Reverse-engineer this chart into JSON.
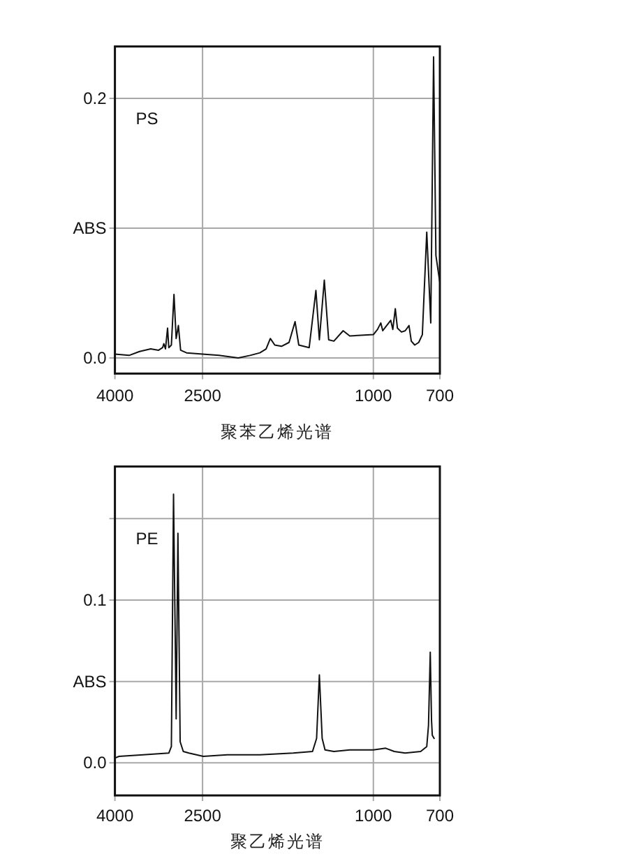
{
  "chart_data": [
    {
      "type": "line",
      "series": [
        {
          "name": "PS",
          "color": "#111111",
          "x": [
            4000,
            3708,
            3505,
            3301,
            3165,
            3097,
            3077,
            3050,
            3016,
            2996,
            2955,
            2914,
            2880,
            2846,
            2812,
            2724,
            2500,
            2289,
            2064,
            1938,
            1838,
            1778,
            1738,
            1697,
            1637,
            1572,
            1522,
            1492,
            1411,
            1361,
            1336,
            1301,
            1271,
            1236,
            1176,
            1135,
            1000,
            978,
            961,
            951,
            936,
            911,
            901,
            889,
            879,
            860,
            843,
            826,
            816,
            801,
            784,
            769,
            751,
            735,
            724,
            715,
            700
          ],
          "values": [
            0.003,
            0.002,
            0.005,
            0.007,
            0.006,
            0.008,
            0.011,
            0.007,
            0.023,
            0.008,
            0.01,
            0.049,
            0.015,
            0.025,
            0.006,
            0.004,
            0.003,
            0.002,
            0.0,
            0.002,
            0.004,
            0.007,
            0.015,
            0.01,
            0.009,
            0.012,
            0.028,
            0.01,
            0.008,
            0.052,
            0.014,
            0.06,
            0.014,
            0.013,
            0.021,
            0.017,
            0.018,
            0.022,
            0.027,
            0.021,
            0.024,
            0.029,
            0.022,
            0.038,
            0.023,
            0.02,
            0.021,
            0.025,
            0.013,
            0.01,
            0.012,
            0.018,
            0.097,
            0.027,
            0.232,
            0.079,
            0.058
          ]
        }
      ],
      "xlim": [
        4000,
        700
      ],
      "xticks": [
        4000,
        2500,
        1000,
        700
      ],
      "log": "x",
      "ylim": [
        -0.012,
        0.24
      ],
      "yticks": [
        {
          "value": 0,
          "label": "0.0"
        },
        {
          "value": 0.1,
          "label": null
        },
        0.2
      ],
      "ylabel": "ABS",
      "annotations": [
        "聚苯乙烯光谱"
      ],
      "grid": true
    },
    {
      "type": "line",
      "series": [
        {
          "name": "PE",
          "color": "#111111",
          "x": [
            4000,
            3912,
            3437,
            2996,
            2955,
            2921,
            2880,
            2853,
            2819,
            2772,
            2690,
            2490,
            2189,
            1838,
            1537,
            1386,
            1356,
            1336,
            1316,
            1296,
            1236,
            1135,
            1000,
            936,
            894,
            843,
            776,
            751,
            744,
            737,
            732,
            729,
            722
          ],
          "values": [
            0.003,
            0.004,
            0.005,
            0.006,
            0.01,
            0.165,
            0.027,
            0.141,
            0.013,
            0.007,
            0.006,
            0.004,
            0.005,
            0.005,
            0.006,
            0.007,
            0.015,
            0.054,
            0.015,
            0.008,
            0.007,
            0.008,
            0.008,
            0.009,
            0.007,
            0.006,
            0.007,
            0.01,
            0.023,
            0.068,
            0.026,
            0.017,
            0.015
          ]
        }
      ],
      "xlim": [
        4000,
        700
      ],
      "xticks": [
        4000,
        2500,
        1000,
        700
      ],
      "log": "x",
      "ylim": [
        -0.02,
        0.182
      ],
      "yticks": [
        {
          "value": 0,
          "label": "0.0"
        },
        {
          "value": 0.05,
          "label": null
        },
        0.1,
        {
          "value": 0.15,
          "label": null
        }
      ],
      "ylabel": "ABS",
      "annotations": [
        "聚乙烯光谱"
      ],
      "grid": true
    }
  ]
}
